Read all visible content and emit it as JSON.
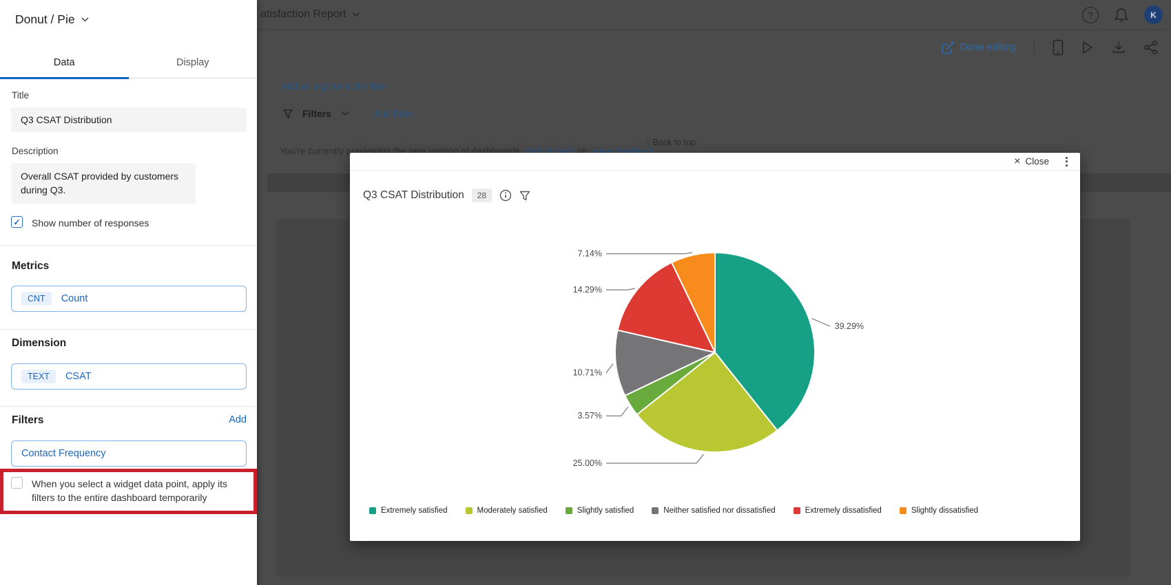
{
  "panel": {
    "widget_type": "Donut / Pie",
    "tabs": {
      "data": "Data",
      "display": "Display"
    },
    "title_label": "Title",
    "title_value": "Q3 CSAT Distribution",
    "description_label": "Description",
    "description_value": "Overall CSAT provided by customers during Q3.",
    "show_responses_label": "Show number of responses",
    "show_responses_checked": "true",
    "metrics_heading": "Metrics",
    "metric_chip": {
      "badge": "CNT",
      "label": "Count"
    },
    "dimension_heading": "Dimension",
    "dimension_chip": {
      "badge": "TEXT",
      "label": "CSAT"
    },
    "filters_heading": "Filters",
    "filters_add_label": "Add",
    "filter_item": "Contact Frequency",
    "dashboard_filter_checkbox_label": "When you select a widget data point, apply its filters to the entire dashboard temporarily",
    "dashboard_filter_checkbox_checked": "false",
    "highlight_color": "#c8202f"
  },
  "background": {
    "report_title": "atisfaction Report",
    "org_filter_link": "Add an org hierarchy filter",
    "filters_label": "Filters",
    "add_filter_label": "Add Filter",
    "back_to_top": "↑ Back to top",
    "preview_notice": "You're currently previewing the new version of dashboards.",
    "switch_back_link": "Switch back",
    "or_text": "or",
    "leave_feedback_link": "Leave feedback",
    "done_editing_label": "Done editing",
    "avatar_initial": "K"
  },
  "modal": {
    "close_label": "Close",
    "title": "Q3 CSAT Distribution",
    "response_count": "28"
  },
  "chart_data": {
    "type": "pie",
    "title": "Q3 CSAT Distribution",
    "direction": "clockwise",
    "start_angle_deg": 0,
    "legend_position": "bottom",
    "value_suffix": "%",
    "series": [
      {
        "label": "Extremely satisfied",
        "value": 39.29,
        "color": "#16a186"
      },
      {
        "label": "Moderately satisfied",
        "value": 25.0,
        "color": "#b9c832"
      },
      {
        "label": "Slightly satisfied",
        "value": 3.57,
        "color": "#69aa3c"
      },
      {
        "label": "Neither satisfied nor dissatisfied",
        "value": 10.71,
        "color": "#757578"
      },
      {
        "label": "Extremely dissatisfied",
        "value": 14.29,
        "color": "#dc3a33"
      },
      {
        "label": "Slightly dissatisfied",
        "value": 7.14,
        "color": "#f78c1c"
      }
    ]
  }
}
